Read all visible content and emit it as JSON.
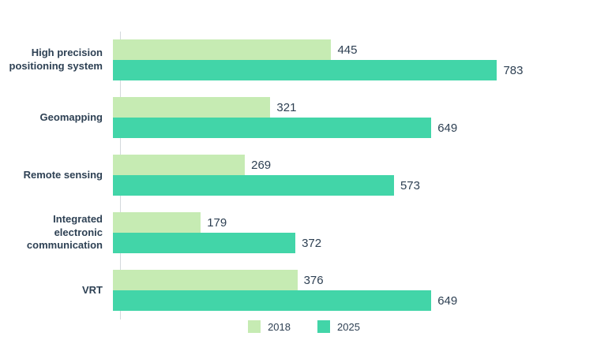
{
  "chart_data": {
    "type": "bar",
    "orientation": "horizontal",
    "title": "",
    "xlabel": "",
    "ylabel": "",
    "categories": [
      "High precision positioning system",
      "Geomapping",
      "Remote sensing",
      "Integrated electronic communication",
      "VRT"
    ],
    "series": [
      {
        "name": "2018",
        "color": "#c6ebb3",
        "values": [
          445,
          321,
          269,
          179,
          376
        ]
      },
      {
        "name": "2025",
        "color": "#42d5a8",
        "values": [
          783,
          649,
          573,
          372,
          649
        ]
      }
    ],
    "xlim": [
      0,
      800
    ],
    "grid": false,
    "legend_position": "bottom",
    "value_labels_shown": true
  },
  "colors": {
    "axis_line": "#d3d9dd",
    "category_text": "#2e4154",
    "value_text": "#2e4053",
    "background": "#ffffff"
  }
}
